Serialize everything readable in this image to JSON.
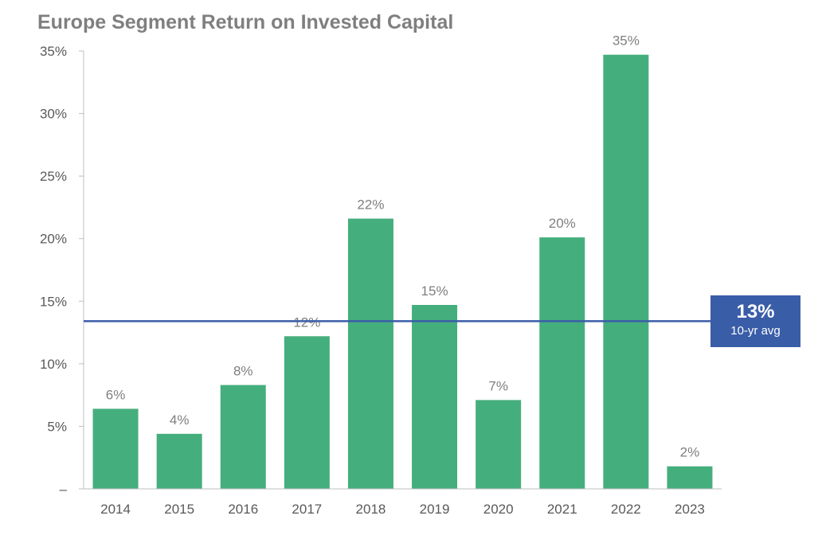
{
  "chart_data": {
    "type": "bar",
    "title": "Europe Segment Return on Invested Capital",
    "categories": [
      "2014",
      "2015",
      "2016",
      "2017",
      "2018",
      "2019",
      "2020",
      "2021",
      "2022",
      "2023"
    ],
    "values": [
      6.4,
      4.4,
      8.3,
      12.2,
      21.6,
      14.7,
      7.1,
      20.1,
      34.7,
      1.8
    ],
    "data_labels": [
      "6%",
      "4%",
      "8%",
      "12%",
      "22%",
      "15%",
      "7%",
      "20%",
      "35%",
      "2%"
    ],
    "ylim": [
      0,
      35
    ],
    "yticks": [
      0,
      5,
      10,
      15,
      20,
      25,
      30,
      35
    ],
    "ytick_labels": [
      "–",
      "5%",
      "10%",
      "15%",
      "20%",
      "25%",
      "30%",
      "35%"
    ],
    "bar_color": "#45ae7d",
    "average": {
      "value": 13.4,
      "label": "13%",
      "caption": "10-yr avg",
      "color": "#3a5da8"
    },
    "grid": false,
    "legend": "none"
  }
}
